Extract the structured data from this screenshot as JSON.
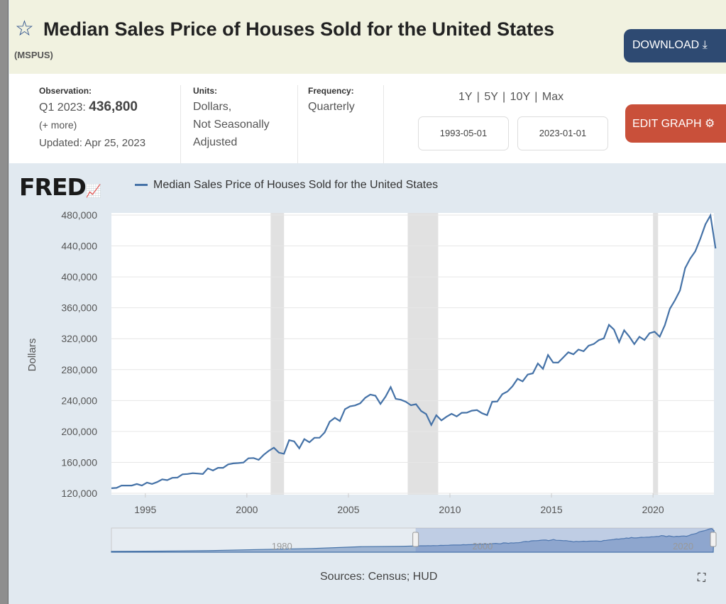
{
  "header": {
    "title": "Median Sales Price of Houses Sold for the United States",
    "series_id": "(MSPUS)",
    "download_label": "DOWNLOAD"
  },
  "info": {
    "observation_label": "Observation:",
    "observation_period": "Q1 2023:",
    "observation_value": "436,800",
    "more": "(+ more)",
    "updated": "Updated: Apr 25, 2023",
    "units_label": "Units:",
    "units_1": "Dollars,",
    "units_2": "Not Seasonally",
    "units_3": "Adjusted",
    "frequency_label": "Frequency:",
    "frequency": "Quarterly"
  },
  "controls": {
    "ranges": "1Y | 5Y | 10Y | Max",
    "start_date": "1993-05-01",
    "end_date": "2023-01-01",
    "edit_label": "EDIT GRAPH"
  },
  "logo": "FRED",
  "footer": {
    "sources": "Sources: Census; HUD"
  },
  "colors": {
    "line": "#4572a7",
    "download": "#2e4a72",
    "edit": "#c9503a"
  },
  "chart_data": {
    "type": "line",
    "title": "Median Sales Price of Houses Sold for the United States",
    "ylabel": "Dollars",
    "xlabel": "",
    "ylim": [
      120000,
      480000
    ],
    "xlim": [
      1993.33,
      2023.0
    ],
    "yticks": [
      120000,
      160000,
      200000,
      240000,
      280000,
      320000,
      360000,
      400000,
      440000,
      480000
    ],
    "ytick_labels": [
      "120,000",
      "160,000",
      "200,000",
      "240,000",
      "280,000",
      "320,000",
      "360,000",
      "400,000",
      "440,000",
      "480,000"
    ],
    "xticks": [
      1995,
      2000,
      2005,
      2010,
      2015,
      2020
    ],
    "recessions": [
      [
        2001.17,
        2001.83
      ],
      [
        2007.92,
        2009.42
      ],
      [
        2020.0,
        2020.25
      ]
    ],
    "series": [
      {
        "name": "Median Sales Price of Houses Sold for the United States",
        "start": 1993.33,
        "step": 0.25,
        "values": [
          126500,
          127000,
          130000,
          130000,
          130000,
          132000,
          130000,
          133900,
          132000,
          134500,
          138000,
          137000,
          140000,
          140300,
          144500,
          145000,
          146000,
          145500,
          145000,
          152200,
          149500,
          153000,
          153000,
          157400,
          158700,
          159100,
          159800,
          165300,
          165600,
          163300,
          169800,
          175000,
          179000,
          172500,
          171100,
          188700,
          187200,
          178100,
          190100,
          186000,
          191800,
          191900,
          198800,
          212700,
          217600,
          213500,
          228800,
          232500,
          233700,
          236400,
          243600,
          247700,
          246300,
          235600,
          245100,
          257400,
          242200,
          241000,
          238400,
          233900,
          235300,
          226500,
          222500,
          208400,
          220900,
          214300,
          219000,
          222900,
          219500,
          224100,
          224300,
          226900,
          227600,
          223600,
          221100,
          238400,
          238700,
          248200,
          251700,
          258400,
          268100,
          264800,
          273600,
          275200,
          288000,
          281000,
          298900,
          289200,
          289100,
          295800,
          302500,
          299800,
          306000,
          303800,
          310900,
          313100,
          318200,
          320500,
          337900,
          331800,
          315600,
          330900,
          322800,
          313000,
          322500,
          318400,
          327100,
          329000,
          322600,
          337500,
          358700,
          369800,
          382600,
          411200,
          423600,
          433100,
          449300,
          468000,
          479500,
          436800
        ]
      }
    ],
    "navigator": {
      "xlim": [
        1963,
        2023
      ],
      "labels": [
        "1980",
        "2000",
        "2020"
      ],
      "label_years": [
        1980,
        2000,
        2020
      ],
      "selection": [
        1993.33,
        2023.0
      ],
      "early_years": [
        1963,
        1968,
        1973,
        1978,
        1983,
        1988,
        1992
      ],
      "early_values": [
        18000,
        22000,
        32500,
        55000,
        75000,
        112000,
        120000
      ]
    }
  }
}
